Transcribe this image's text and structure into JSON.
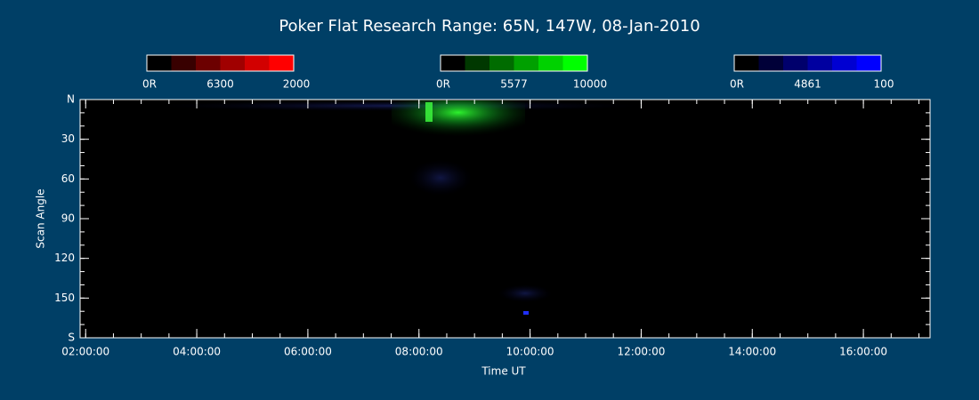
{
  "chart_data": {
    "type": "keogram",
    "title": "Poker Flat Research Range: 65N, 147W, 08-Jan-2010",
    "xlabel": "Time UT",
    "ylabel": "Scan Angle",
    "xlim": [
      1.9,
      17.2
    ],
    "xticks": [
      {
        "value": 2,
        "label": "02:00:00"
      },
      {
        "value": 4,
        "label": "04:00:00"
      },
      {
        "value": 6,
        "label": "06:00:00"
      },
      {
        "value": 8,
        "label": "08:00:00"
      },
      {
        "value": 10,
        "label": "10:00:00"
      },
      {
        "value": 12,
        "label": "12:00:00"
      },
      {
        "value": 14,
        "label": "14:00:00"
      },
      {
        "value": 16,
        "label": "16:00:00"
      }
    ],
    "ylim": [
      0,
      180
    ],
    "yticks": [
      {
        "value": 0,
        "label": "N"
      },
      30,
      60,
      90,
      120,
      150,
      {
        "value": 180,
        "label": "S"
      }
    ],
    "colorbars": [
      {
        "min_label": "0R",
        "line": "6300",
        "max_label": "2000",
        "colors": [
          "#000000",
          "#380000",
          "#6c0000",
          "#a00000",
          "#d20000",
          "#ff0000"
        ]
      },
      {
        "min_label": "0R",
        "line": "5577",
        "max_label": "10000",
        "colors": [
          "#000000",
          "#003800",
          "#006c00",
          "#00a000",
          "#00d200",
          "#00ff00"
        ]
      },
      {
        "min_label": "0R",
        "line": "4861",
        "max_label": "100",
        "colors": [
          "#000000",
          "#000038",
          "#00006c",
          "#0000a0",
          "#0000d2",
          "#0000ff"
        ]
      }
    ]
  }
}
